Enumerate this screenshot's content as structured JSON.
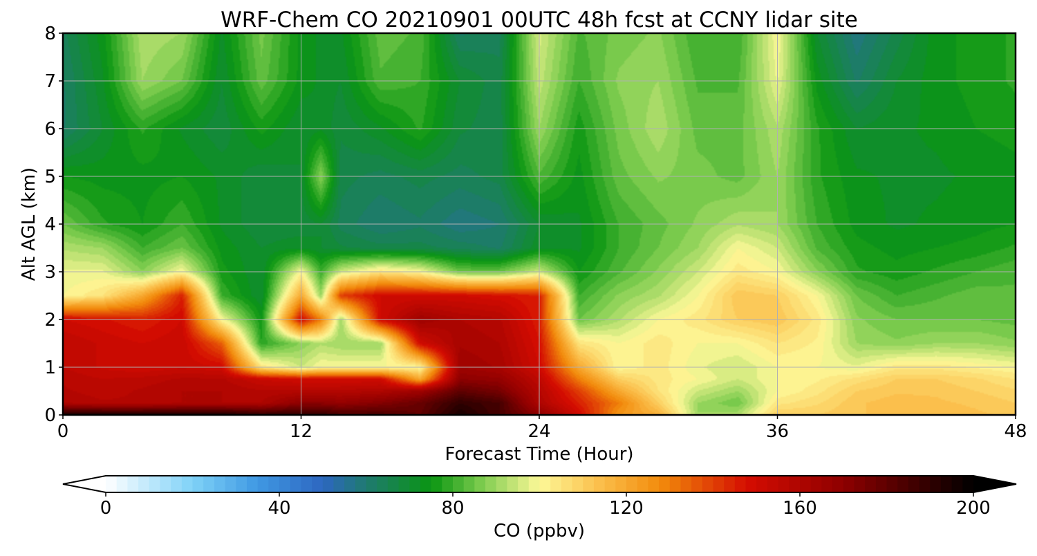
{
  "chart_data": {
    "type": "heatmap",
    "title": "WRF-Chem CO  20210901 00UTC 48h fcst at CCNY lidar site",
    "xlabel": "Forecast Time (Hour)",
    "ylabel": "Alt AGL (km)",
    "xlim": [
      0,
      48
    ],
    "ylim": [
      0,
      8
    ],
    "xticks": [
      0,
      12,
      24,
      36,
      48
    ],
    "yticks": [
      0,
      1,
      2,
      3,
      4,
      5,
      6,
      7,
      8
    ],
    "grid": true,
    "colorbar": {
      "label": "CO  (ppbv)",
      "min": 0,
      "max": 200,
      "ticks": [
        0,
        40,
        80,
        120,
        160,
        200
      ],
      "extend": "both",
      "orientation": "horizontal",
      "stops": [
        {
          "value": 0,
          "color": "#ffffff"
        },
        {
          "value": 20,
          "color": "#7fd2f7"
        },
        {
          "value": 35,
          "color": "#3f98e3"
        },
        {
          "value": 50,
          "color": "#2d67c0"
        },
        {
          "value": 60,
          "color": "#1f7a70"
        },
        {
          "value": 75,
          "color": "#0a9512"
        },
        {
          "value": 87,
          "color": "#80cd50"
        },
        {
          "value": 100,
          "color": "#fdf898"
        },
        {
          "value": 113,
          "color": "#fbc24f"
        },
        {
          "value": 128,
          "color": "#f28a0b"
        },
        {
          "value": 148,
          "color": "#d40c01"
        },
        {
          "value": 170,
          "color": "#8e0000"
        },
        {
          "value": 200,
          "color": "#000000"
        }
      ],
      "under_color": "#ffffff",
      "over_color": "#000000"
    },
    "x": [
      0,
      2,
      4,
      6,
      8,
      10,
      12,
      13,
      14,
      16,
      18,
      20,
      22,
      24,
      26,
      28,
      30,
      32,
      34,
      36,
      38,
      40,
      42,
      44,
      46,
      48
    ],
    "y": [
      0,
      0.25,
      0.5,
      0.75,
      1,
      1.5,
      2,
      2.5,
      3,
      3.5,
      4,
      5,
      6,
      7,
      8
    ],
    "z": [
      [
        195,
        195,
        195,
        195,
        195,
        190,
        190,
        190,
        185,
        185,
        180,
        195,
        185,
        170,
        150,
        125,
        118,
        90,
        92,
        110,
        110,
        112,
        114,
        114,
        113,
        112
      ],
      [
        160,
        158,
        158,
        160,
        160,
        160,
        170,
        170,
        168,
        172,
        178,
        190,
        185,
        160,
        145,
        130,
        110,
        90,
        85,
        104,
        107,
        112,
        114,
        113,
        112,
        110
      ],
      [
        158,
        156,
        158,
        160,
        160,
        158,
        158,
        158,
        158,
        160,
        165,
        180,
        175,
        158,
        140,
        120,
        105,
        95,
        90,
        100,
        104,
        110,
        112,
        112,
        110,
        108
      ],
      [
        157,
        155,
        156,
        158,
        158,
        152,
        150,
        150,
        150,
        150,
        120,
        170,
        168,
        155,
        130,
        110,
        104,
        100,
        95,
        100,
        102,
        106,
        110,
        110,
        108,
        105
      ],
      [
        155,
        152,
        150,
        152,
        150,
        105,
        95,
        100,
        100,
        100,
        100,
        165,
        162,
        150,
        120,
        100,
        104,
        98,
        95,
        100,
        100,
        98,
        104,
        104,
        102,
        100
      ],
      [
        155,
        152,
        150,
        152,
        135,
        78,
        88,
        92,
        90,
        90,
        150,
        162,
        160,
        148,
        105,
        100,
        104,
        100,
        100,
        105,
        102,
        90,
        88,
        90,
        90,
        88
      ],
      [
        150,
        148,
        145,
        150,
        100,
        75,
        150,
        130,
        90,
        150,
        165,
        160,
        158,
        145,
        85,
        92,
        100,
        104,
        110,
        112,
        104,
        88,
        85,
        85,
        85,
        84
      ],
      [
        100,
        105,
        120,
        145,
        80,
        70,
        120,
        90,
        140,
        150,
        150,
        150,
        148,
        145,
        80,
        88,
        92,
        100,
        112,
        110,
        100,
        85,
        80,
        82,
        84,
        83
      ],
      [
        98,
        98,
        88,
        100,
        76,
        70,
        100,
        80,
        95,
        105,
        100,
        85,
        85,
        95,
        75,
        82,
        88,
        95,
        104,
        100,
        88,
        78,
        76,
        78,
        80,
        82
      ],
      [
        92,
        90,
        80,
        85,
        74,
        70,
        72,
        70,
        68,
        66,
        66,
        64,
        62,
        72,
        72,
        80,
        85,
        90,
        100,
        95,
        82,
        76,
        74,
        75,
        76,
        78
      ],
      [
        85,
        78,
        75,
        80,
        72,
        68,
        68,
        70,
        64,
        60,
        62,
        58,
        60,
        70,
        72,
        80,
        84,
        88,
        92,
        90,
        80,
        74,
        72,
        73,
        74,
        75
      ],
      [
        75,
        74,
        74,
        75,
        72,
        68,
        70,
        88,
        66,
        64,
        66,
        64,
        66,
        82,
        74,
        84,
        88,
        86,
        84,
        90,
        78,
        73,
        72,
        72,
        73,
        74
      ],
      [
        62,
        70,
        78,
        72,
        68,
        76,
        70,
        72,
        68,
        72,
        78,
        68,
        66,
        90,
        76,
        86,
        92,
        84,
        84,
        92,
        78,
        70,
        72,
        73,
        75,
        76
      ],
      [
        62,
        72,
        90,
        85,
        70,
        84,
        74,
        72,
        70,
        82,
        80,
        70,
        66,
        94,
        80,
        88,
        90,
        82,
        82,
        98,
        74,
        62,
        70,
        74,
        76,
        78
      ],
      [
        64,
        74,
        92,
        90,
        72,
        86,
        74,
        72,
        72,
        84,
        82,
        62,
        64,
        96,
        82,
        86,
        88,
        80,
        80,
        100,
        70,
        58,
        66,
        74,
        76,
        78
      ]
    ]
  }
}
